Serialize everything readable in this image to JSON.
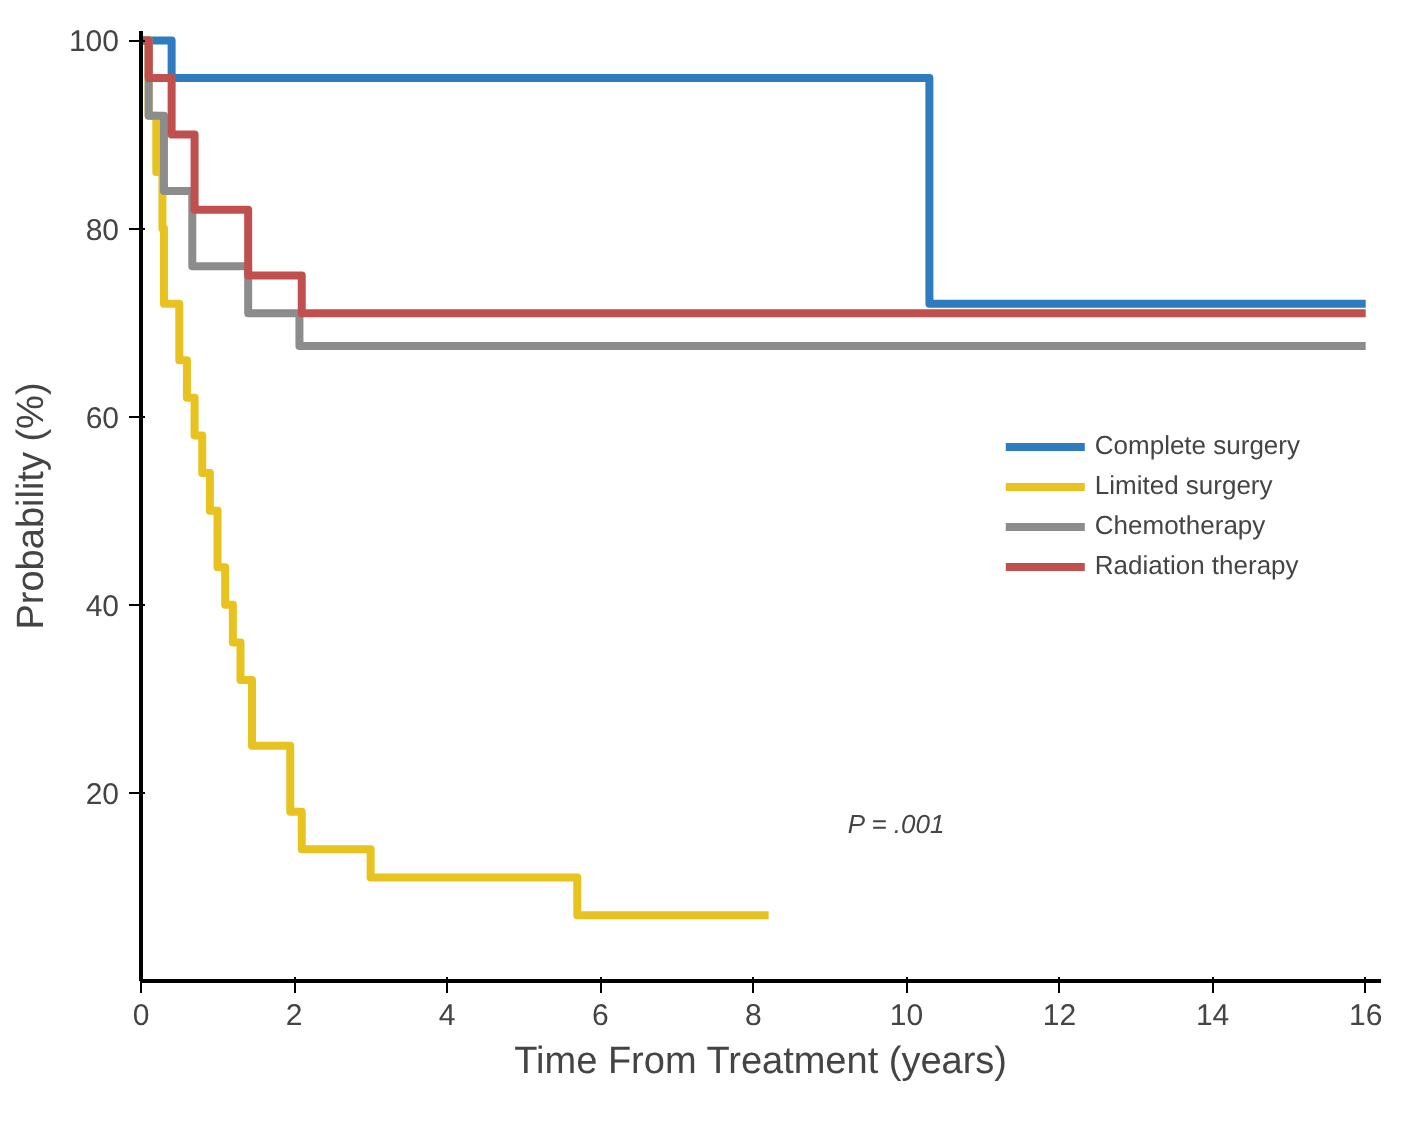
{
  "chart_data": {
    "type": "step",
    "xlabel": "Time From Treatment (years)",
    "ylabel": "Probability (%)",
    "xlim": [
      0,
      16.2
    ],
    "ylim": [
      0,
      101
    ],
    "xticks": [
      0,
      2,
      4,
      6,
      8,
      10,
      12,
      14,
      16
    ],
    "yticks": [
      20,
      40,
      60,
      80,
      100
    ],
    "grid": false,
    "legend": "right",
    "annotations": [
      "P = .001"
    ],
    "series": [
      {
        "name": "Complete surgery",
        "color": "#2e7bbf",
        "x": [
          0,
          0.4,
          10.3,
          16
        ],
        "values": [
          100,
          96,
          72,
          72
        ]
      },
      {
        "name": "Limited surgery",
        "color": "#e8c21e",
        "x": [
          0,
          0.1,
          0.2,
          0.28,
          0.3,
          0.5,
          0.6,
          0.7,
          0.8,
          0.9,
          1.0,
          1.1,
          1.2,
          1.3,
          1.45,
          1.95,
          2.1,
          3.0,
          5.7,
          8.2
        ],
        "values": [
          100,
          92,
          86,
          80,
          72,
          66,
          62,
          58,
          54,
          50,
          44,
          40,
          36,
          32,
          25,
          18,
          14,
          11,
          7,
          7
        ]
      },
      {
        "name": "Chemotherapy",
        "color": "#8c8c8c",
        "x": [
          0,
          0.1,
          0.3,
          0.67,
          1.4,
          2.07,
          16
        ],
        "values": [
          100,
          92,
          84,
          76,
          71,
          67.5,
          67.5
        ]
      },
      {
        "name": "Radiation therapy",
        "color": "#c0504d",
        "x": [
          0,
          0.1,
          0.4,
          0.7,
          1.4,
          2.1,
          16
        ],
        "values": [
          100,
          96,
          90,
          82,
          75,
          71,
          71
        ]
      }
    ]
  }
}
